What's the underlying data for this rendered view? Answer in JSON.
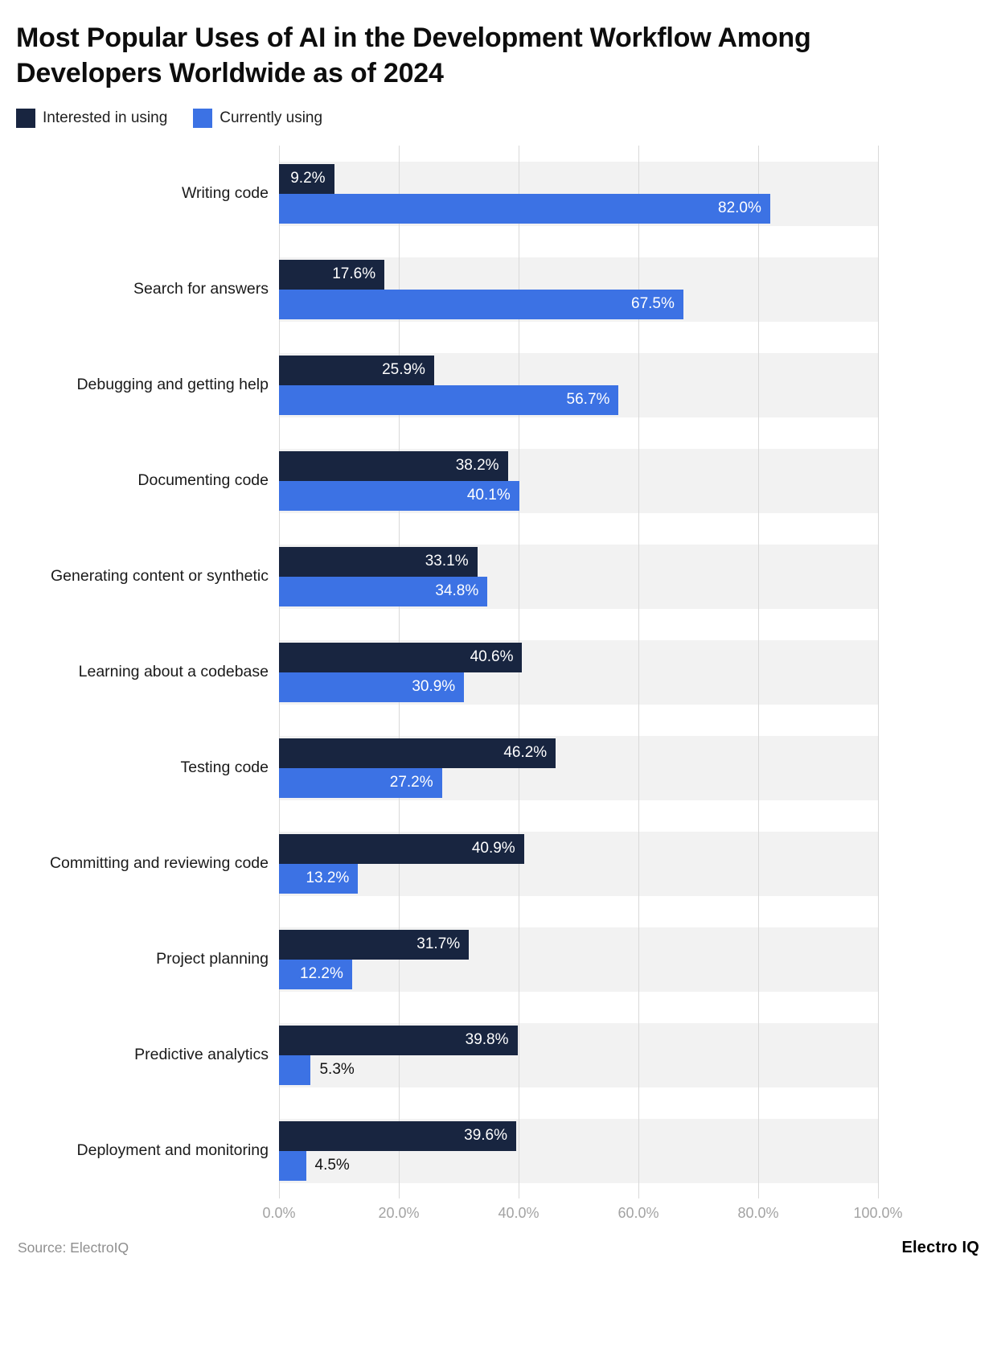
{
  "title": "Most Popular Uses of AI in the Development Workflow Among Developers Worldwide as of 2024",
  "source": "Source: ElectroIQ",
  "brand": "Electro IQ",
  "colors": {
    "interested": "#182540",
    "currently": "#3c72e4",
    "band_background": "#f2f2f2",
    "gridline": "#d9d9d9"
  },
  "chart_data": {
    "type": "bar",
    "orientation": "horizontal",
    "title": "Most Popular Uses of AI in the Development Workflow Among Developers Worldwide as of 2024",
    "categories": [
      "Writing code",
      "Search for answers",
      "Debugging and getting help",
      "Documenting code",
      "Generating content or synthetic",
      "Learning about a codebase",
      "Testing code",
      "Committing and reviewing code",
      "Project planning",
      "Predictive analytics",
      "Deployment and monitoring"
    ],
    "series": [
      {
        "name": "Interested in using",
        "color": "#182540",
        "values": [
          9.2,
          17.6,
          25.9,
          38.2,
          33.1,
          40.6,
          46.2,
          40.9,
          31.7,
          39.8,
          39.6
        ]
      },
      {
        "name": "Currently using",
        "color": "#3c72e4",
        "values": [
          82.0,
          67.5,
          56.7,
          40.1,
          34.8,
          30.9,
          27.2,
          13.2,
          12.2,
          5.3,
          4.5
        ]
      }
    ],
    "xlim": [
      0,
      100
    ],
    "x_ticks": [
      "0.0%",
      "20.0%",
      "40.0%",
      "60.0%",
      "80.0%",
      "100.0%"
    ],
    "value_suffix": "%",
    "grid": "vertical",
    "legend_position": "top-left"
  }
}
